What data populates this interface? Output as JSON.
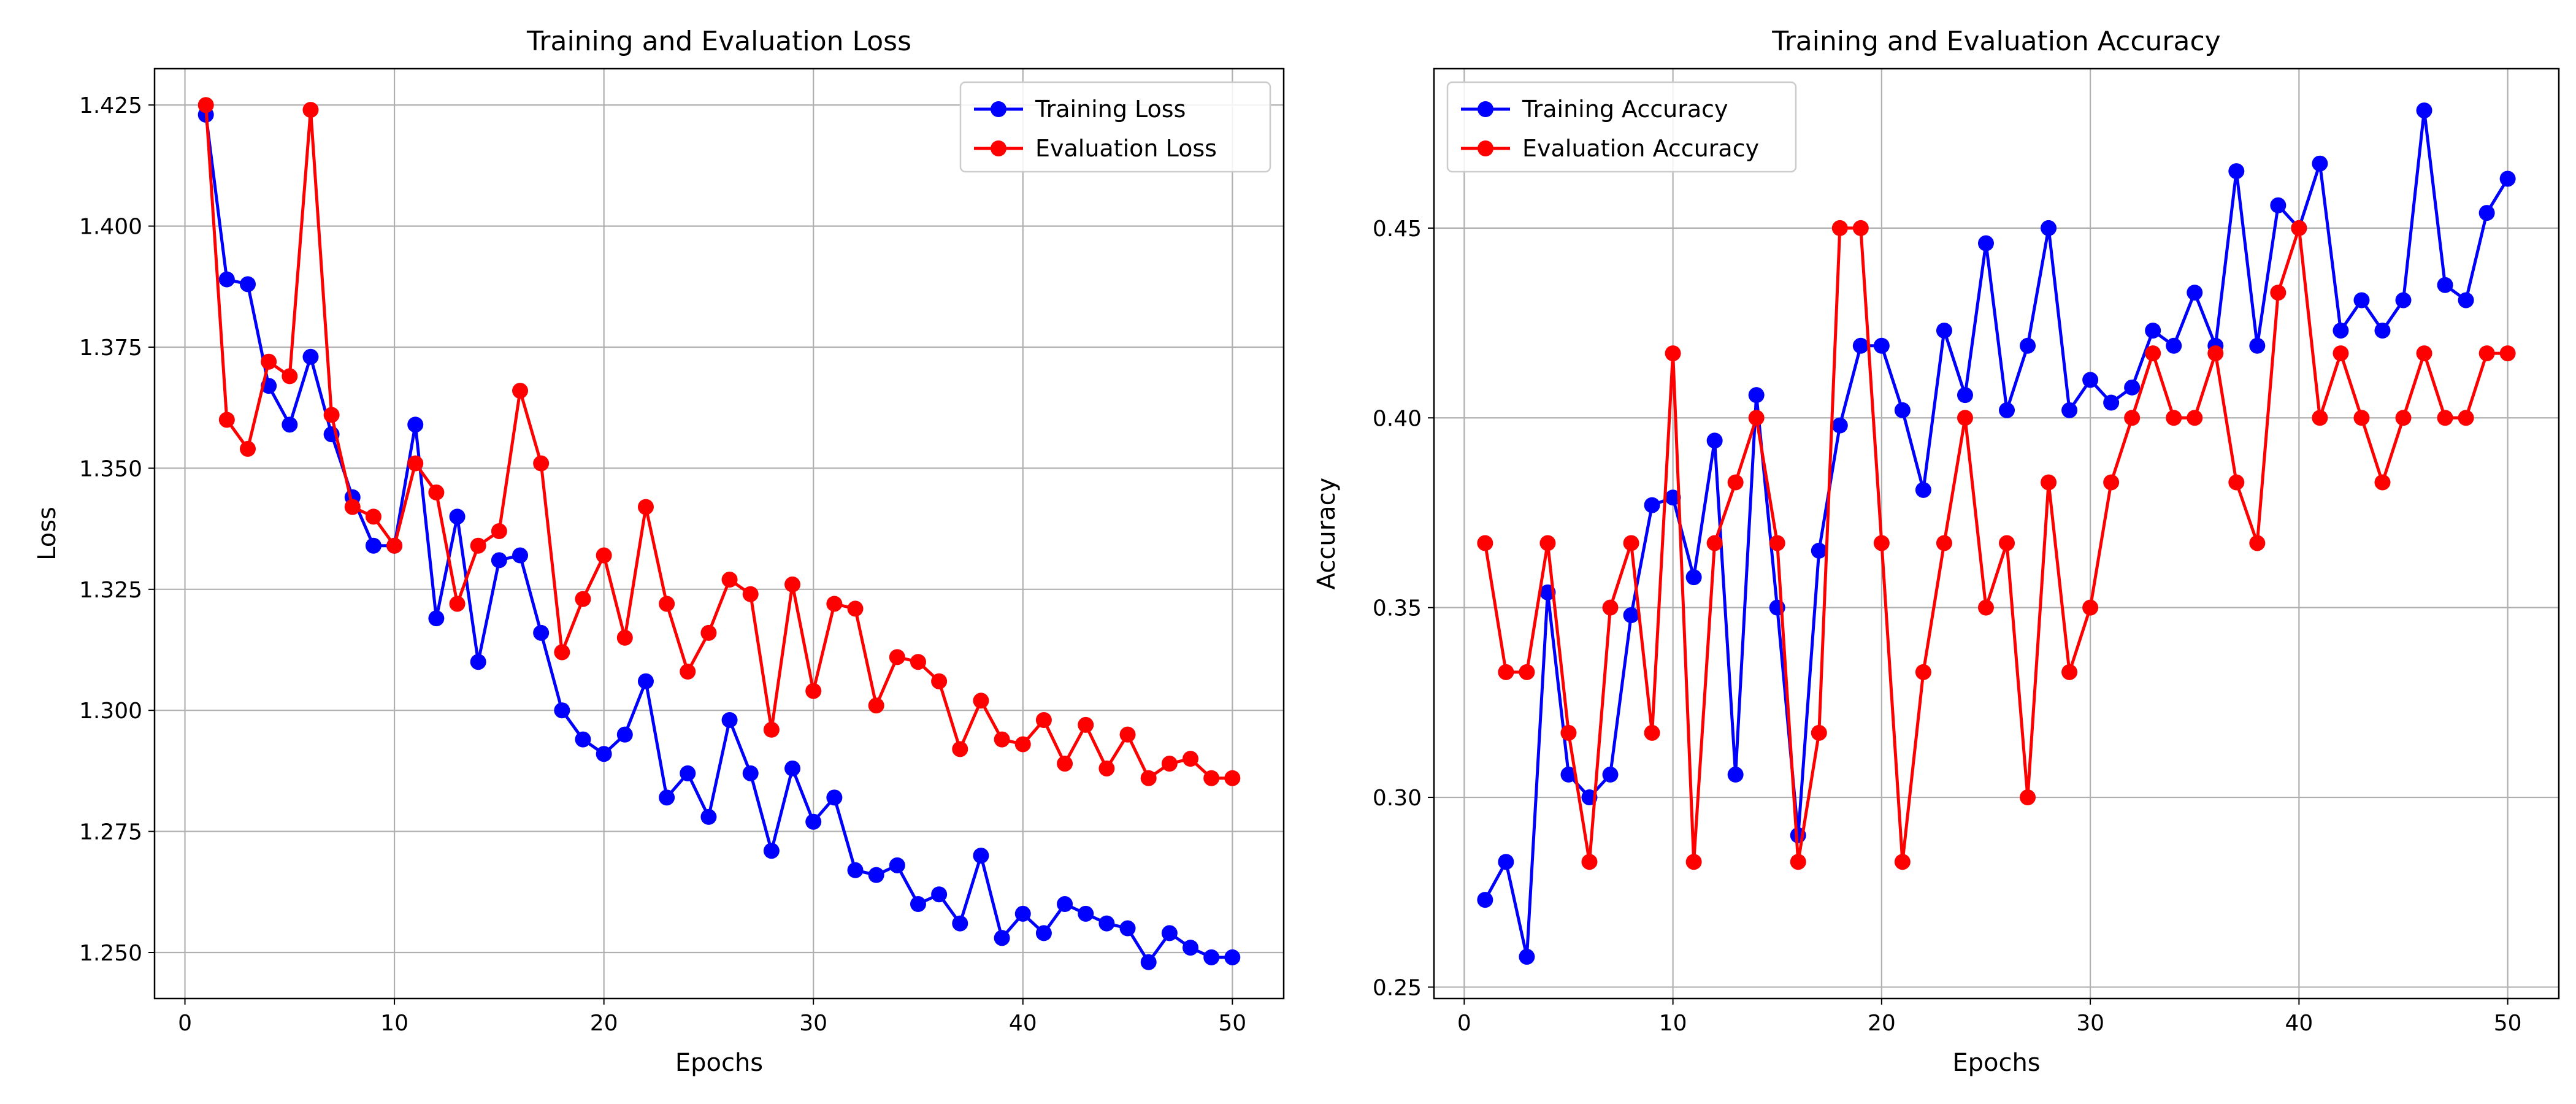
{
  "chart_data": [
    {
      "type": "line",
      "title": "Training and Evaluation Loss",
      "xlabel": "Epochs",
      "ylabel": "Loss",
      "xlim": [
        -1.45,
        52.45
      ],
      "ylim": [
        1.2405,
        1.4325
      ],
      "xticks": [
        0,
        10,
        20,
        30,
        40,
        50
      ],
      "yticks": [
        1.25,
        1.275,
        1.3,
        1.325,
        1.35,
        1.375,
        1.4,
        1.425
      ],
      "ytick_labels": [
        "1.250",
        "1.275",
        "1.300",
        "1.325",
        "1.350",
        "1.375",
        "1.400",
        "1.425"
      ],
      "grid": true,
      "legend": "upper right",
      "x": [
        1,
        2,
        3,
        4,
        5,
        6,
        7,
        8,
        9,
        10,
        11,
        12,
        13,
        14,
        15,
        16,
        17,
        18,
        19,
        20,
        21,
        22,
        23,
        24,
        25,
        26,
        27,
        28,
        29,
        30,
        31,
        32,
        33,
        34,
        35,
        36,
        37,
        38,
        39,
        40,
        41,
        42,
        43,
        44,
        45,
        46,
        47,
        48,
        49,
        50
      ],
      "series": [
        {
          "name": "Training Loss",
          "color": "#0000ff",
          "values": [
            1.423,
            1.389,
            1.388,
            1.367,
            1.359,
            1.373,
            1.357,
            1.344,
            1.334,
            1.334,
            1.359,
            1.319,
            1.34,
            1.31,
            1.331,
            1.332,
            1.316,
            1.3,
            1.294,
            1.291,
            1.295,
            1.306,
            1.282,
            1.287,
            1.278,
            1.298,
            1.287,
            1.271,
            1.288,
            1.277,
            1.282,
            1.267,
            1.266,
            1.268,
            1.26,
            1.262,
            1.256,
            1.27,
            1.253,
            1.258,
            1.254,
            1.26,
            1.258,
            1.256,
            1.255,
            1.248,
            1.254,
            1.251,
            1.249,
            1.249
          ]
        },
        {
          "name": "Evaluation Loss",
          "color": "#ff0000",
          "values": [
            1.425,
            1.36,
            1.354,
            1.372,
            1.369,
            1.424,
            1.361,
            1.342,
            1.34,
            1.334,
            1.351,
            1.345,
            1.322,
            1.334,
            1.337,
            1.366,
            1.351,
            1.312,
            1.323,
            1.332,
            1.315,
            1.342,
            1.322,
            1.308,
            1.316,
            1.327,
            1.324,
            1.296,
            1.326,
            1.304,
            1.322,
            1.321,
            1.301,
            1.311,
            1.31,
            1.306,
            1.292,
            1.302,
            1.294,
            1.293,
            1.298,
            1.289,
            1.297,
            1.288,
            1.295,
            1.286,
            1.289,
            1.29,
            1.286,
            1.286
          ]
        }
      ]
    },
    {
      "type": "line",
      "title": "Training and Evaluation Accuracy",
      "xlabel": "Epochs",
      "ylabel": "Accuracy",
      "xlim": [
        -1.45,
        52.45
      ],
      "ylim": [
        0.247,
        0.492
      ],
      "xticks": [
        0,
        10,
        20,
        30,
        40,
        50
      ],
      "yticks": [
        0.25,
        0.3,
        0.35,
        0.4,
        0.45
      ],
      "ytick_labels": [
        "0.25",
        "0.30",
        "0.35",
        "0.40",
        "0.45"
      ],
      "grid": true,
      "legend": "upper left",
      "x": [
        1,
        2,
        3,
        4,
        5,
        6,
        7,
        8,
        9,
        10,
        11,
        12,
        13,
        14,
        15,
        16,
        17,
        18,
        19,
        20,
        21,
        22,
        23,
        24,
        25,
        26,
        27,
        28,
        29,
        30,
        31,
        32,
        33,
        34,
        35,
        36,
        37,
        38,
        39,
        40,
        41,
        42,
        43,
        44,
        45,
        46,
        47,
        48,
        49,
        50
      ],
      "series": [
        {
          "name": "Training Accuracy",
          "color": "#0000ff",
          "values": [
            0.273,
            0.283,
            0.258,
            0.354,
            0.306,
            0.3,
            0.306,
            0.348,
            0.377,
            0.379,
            0.358,
            0.394,
            0.306,
            0.406,
            0.35,
            0.29,
            0.365,
            0.398,
            0.419,
            0.419,
            0.402,
            0.381,
            0.423,
            0.406,
            0.446,
            0.402,
            0.419,
            0.45,
            0.402,
            0.41,
            0.404,
            0.408,
            0.423,
            0.419,
            0.433,
            0.419,
            0.465,
            0.419,
            0.456,
            0.45,
            0.467,
            0.423,
            0.431,
            0.423,
            0.431,
            0.481,
            0.435,
            0.431,
            0.454,
            0.463
          ]
        },
        {
          "name": "Evaluation Accuracy",
          "color": "#ff0000",
          "values": [
            0.367,
            0.333,
            0.333,
            0.367,
            0.317,
            0.283,
            0.35,
            0.367,
            0.317,
            0.417,
            0.283,
            0.367,
            0.383,
            0.4,
            0.367,
            0.283,
            0.317,
            0.45,
            0.45,
            0.367,
            0.283,
            0.333,
            0.367,
            0.4,
            0.35,
            0.367,
            0.3,
            0.383,
            0.333,
            0.35,
            0.383,
            0.4,
            0.417,
            0.4,
            0.4,
            0.417,
            0.383,
            0.367,
            0.433,
            0.45,
            0.4,
            0.417,
            0.4,
            0.383,
            0.4,
            0.417,
            0.4,
            0.4,
            0.417,
            0.417
          ]
        }
      ]
    }
  ]
}
